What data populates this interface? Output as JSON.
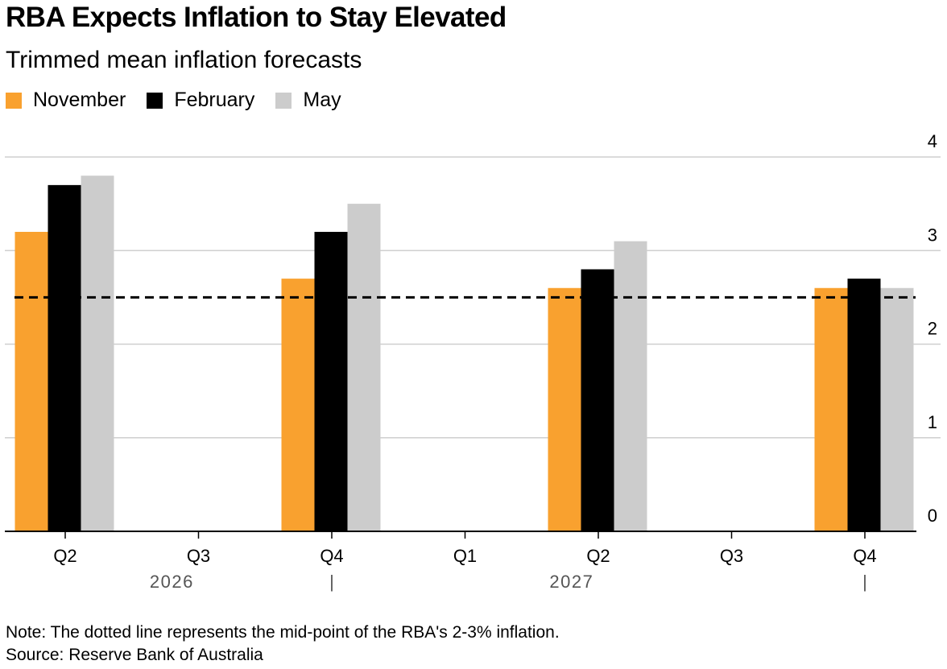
{
  "title": "RBA Expects Inflation to Stay Elevated",
  "subtitle": "Trimmed mean inflation forecasts",
  "legend": [
    {
      "label": "November",
      "color": "#f9a12f"
    },
    {
      "label": "February",
      "color": "#000000"
    },
    {
      "label": "May",
      "color": "#cccccc"
    }
  ],
  "notes": {
    "note": "Note: The dotted line represents the mid-point of the RBA's 2-3% inflation.",
    "source": "Source: Reserve Bank of Australia"
  },
  "chart_data": {
    "type": "bar",
    "categories": [
      "Q2",
      "Q3",
      "Q4",
      "Q1",
      "Q2",
      "Q3",
      "Q4"
    ],
    "year_labels": [
      {
        "label": "2026",
        "category_index": 0
      },
      {
        "label": "2027",
        "category_index": 3
      }
    ],
    "year_separator": "|",
    "series": [
      {
        "name": "November",
        "color": "#f9a12f",
        "values": [
          3.2,
          null,
          2.7,
          null,
          2.6,
          null,
          2.6
        ]
      },
      {
        "name": "February",
        "color": "#000000",
        "values": [
          3.7,
          null,
          3.2,
          null,
          2.8,
          null,
          2.7
        ]
      },
      {
        "name": "May",
        "color": "#cccccc",
        "values": [
          3.8,
          null,
          3.5,
          null,
          3.1,
          null,
          2.6
        ]
      }
    ],
    "ylim": [
      0,
      4
    ],
    "yticks": [
      "0",
      "1",
      "2",
      "3",
      "4"
    ],
    "y_axis_side": "right",
    "grid": true,
    "reference_line": {
      "value": 2.5,
      "style": "dashed",
      "color": "#000000"
    },
    "legend_position": "top-left"
  }
}
